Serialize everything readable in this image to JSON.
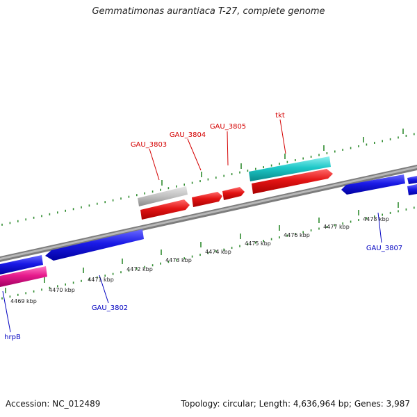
{
  "header": {
    "title": "Gemmatimonas aurantiaca T-27, complete genome"
  },
  "footer": {
    "accession": "Accession: NC_012489",
    "summary": "Topology: circular; Length: 4,636,964 bp; Genes: 3,987"
  },
  "colors": {
    "background": "#ffffff",
    "backbone": "#888888",
    "tick": "#2e8b2e",
    "forward_gene": "#e31414",
    "reverse_gene": "#1a1ae6",
    "rna_gene": "#1ec8c8",
    "pseudo_gene": "#c0c0c0",
    "misc_gene": "#e61a8c",
    "forward_label": "#d40000",
    "reverse_label": "#0000c0",
    "ruler_label": "#222222"
  },
  "ruler": [
    {
      "label": "4469 kbp"
    },
    {
      "label": "4470 kbp"
    },
    {
      "label": "4471 kbp"
    },
    {
      "label": "4472 kbp"
    },
    {
      "label": "4473 kbp"
    },
    {
      "label": "4474 kbp"
    },
    {
      "label": "4475 kbp"
    },
    {
      "label": "4476 kbp"
    },
    {
      "label": "4477 kbp"
    },
    {
      "label": "4478 kbp"
    }
  ],
  "gene_labels": {
    "forward": [
      "GAU_3803",
      "GAU_3804",
      "GAU_3805",
      "tkt"
    ],
    "reverse": [
      "GAU_3802",
      "GAU_3807",
      "hrpB"
    ]
  }
}
